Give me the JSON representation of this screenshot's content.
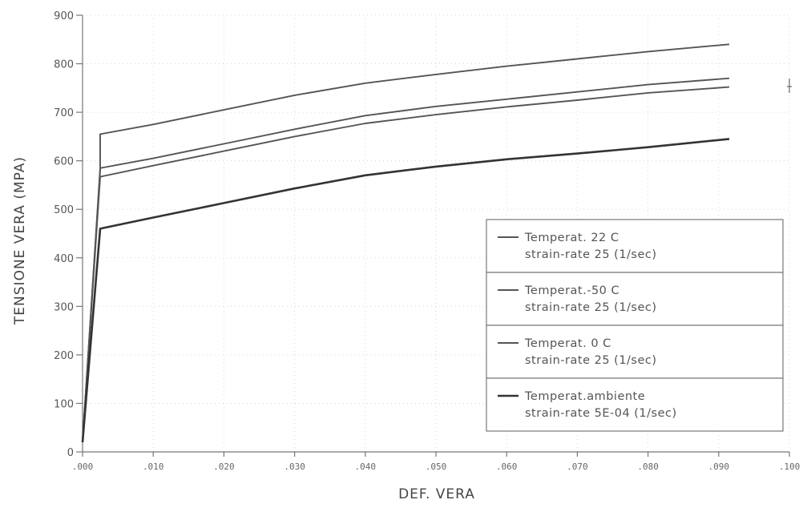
{
  "chart_data": {
    "type": "line",
    "title": "",
    "xlabel": "DEF. VERA",
    "ylabel": "TENSIONE VERA (MPA)",
    "xlim": [
      0,
      0.1
    ],
    "ylim": [
      0,
      900
    ],
    "grid": true,
    "legend_position": "right",
    "x_ticks": [
      0,
      0.01,
      0.02,
      0.03,
      0.04,
      0.05,
      0.06,
      0.07,
      0.08,
      0.09,
      0.1
    ],
    "x_tick_labels": [
      ".000",
      ".010",
      ".020",
      ".030",
      ".040",
      ".050",
      ".060",
      ".070",
      ".080",
      ".090",
      ".100"
    ],
    "y_ticks": [
      0,
      100,
      200,
      300,
      400,
      500,
      600,
      700,
      800,
      900
    ],
    "y_tick_labels": [
      "0",
      "100",
      "200",
      "300",
      "400",
      "500",
      "600",
      "700",
      "800",
      "900"
    ],
    "series": [
      {
        "name": "Temperat. 22 C strain-rate 25 (1/sec)",
        "legend_lines": [
          "Temperat. 22 C",
          "strain-rate 25 (1/sec)"
        ],
        "color": "#555555",
        "x": [
          0,
          0.0025,
          0.0025,
          0.01,
          0.02,
          0.03,
          0.04,
          0.05,
          0.06,
          0.07,
          0.08,
          0.0915
        ],
        "y": [
          20,
          580,
          655,
          675,
          705,
          735,
          760,
          778,
          795,
          810,
          825,
          840
        ]
      },
      {
        "name": "Temperat.-50 C strain-rate 25 (1/sec)",
        "legend_lines": [
          "Temperat.-50 C",
          "strain-rate 25 (1/sec)"
        ],
        "color": "#555555",
        "x": [
          0,
          0.0025,
          0.01,
          0.02,
          0.03,
          0.04,
          0.05,
          0.06,
          0.07,
          0.08,
          0.0915
        ],
        "y": [
          20,
          585,
          605,
          635,
          665,
          693,
          712,
          727,
          742,
          757,
          770
        ]
      },
      {
        "name": "Temperat. 0 C strain-rate 25 (1/sec)",
        "legend_lines": [
          "Temperat. 0 C",
          "strain-rate 25 (1/sec)"
        ],
        "color": "#555555",
        "x": [
          0,
          0.0025,
          0.01,
          0.02,
          0.03,
          0.04,
          0.05,
          0.06,
          0.07,
          0.08,
          0.0915
        ],
        "y": [
          20,
          567,
          590,
          620,
          650,
          677,
          695,
          711,
          725,
          740,
          752
        ]
      },
      {
        "name": "Temperat.ambiente strain-rate 5E-04 (1/sec)",
        "legend_lines": [
          "Temperat.ambiente",
          "strain-rate 5E-04 (1/sec)"
        ],
        "color": "#333333",
        "x": [
          0,
          0.0025,
          0.01,
          0.02,
          0.03,
          0.04,
          0.05,
          0.06,
          0.07,
          0.08,
          0.0915
        ],
        "y": [
          20,
          460,
          483,
          513,
          543,
          570,
          588,
          603,
          615,
          628,
          645
        ]
      }
    ]
  }
}
